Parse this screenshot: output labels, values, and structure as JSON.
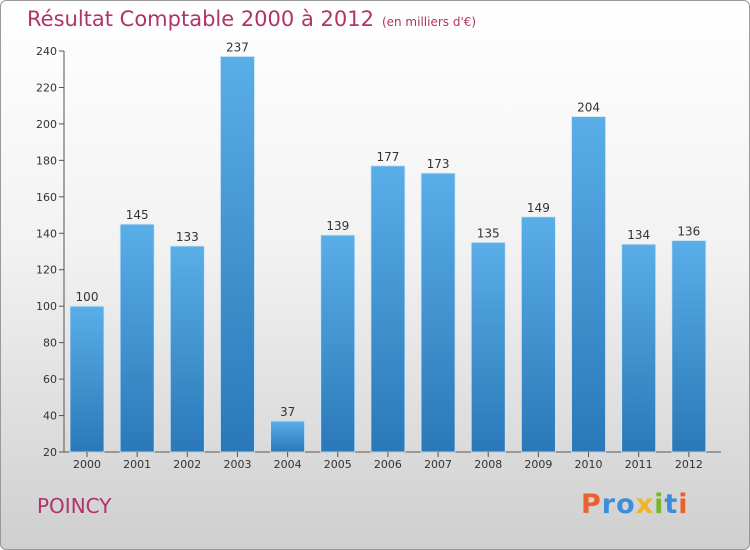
{
  "header": {
    "title": "Résultat Comptable 2000 à 2012",
    "subtitle": "(en milliers d'€)"
  },
  "footer": {
    "town": "POINCY",
    "logo": "Proxiti"
  },
  "colors": {
    "title": "#b03468",
    "bar_top": "#5aaee8",
    "bar_bottom": "#2a78b8",
    "logo": [
      "#e8622a",
      "#3b8fd8",
      "#3b8fd8",
      "#f0b428",
      "#76b82a",
      "#3b8fd8",
      "#e8622a"
    ]
  },
  "chart_data": {
    "type": "bar",
    "title": "Résultat Comptable 2000 à 2012",
    "subtitle": "(en milliers d'€)",
    "xlabel": "",
    "ylabel": "",
    "categories": [
      "2000",
      "2001",
      "2002",
      "2003",
      "2004",
      "2005",
      "2006",
      "2007",
      "2008",
      "2009",
      "2010",
      "2011",
      "2012"
    ],
    "values": [
      100,
      145,
      133,
      237,
      37,
      139,
      177,
      173,
      135,
      149,
      204,
      134,
      136
    ],
    "data_labels": [
      "100",
      "145",
      "133",
      "237",
      "37",
      "139",
      "177",
      "173",
      "135",
      "149",
      "204",
      "134",
      "136"
    ],
    "ylim": [
      20,
      240
    ],
    "yticks": [
      20,
      40,
      60,
      80,
      100,
      120,
      140,
      160,
      180,
      200,
      220,
      240
    ],
    "grid": false,
    "legend": "none"
  }
}
